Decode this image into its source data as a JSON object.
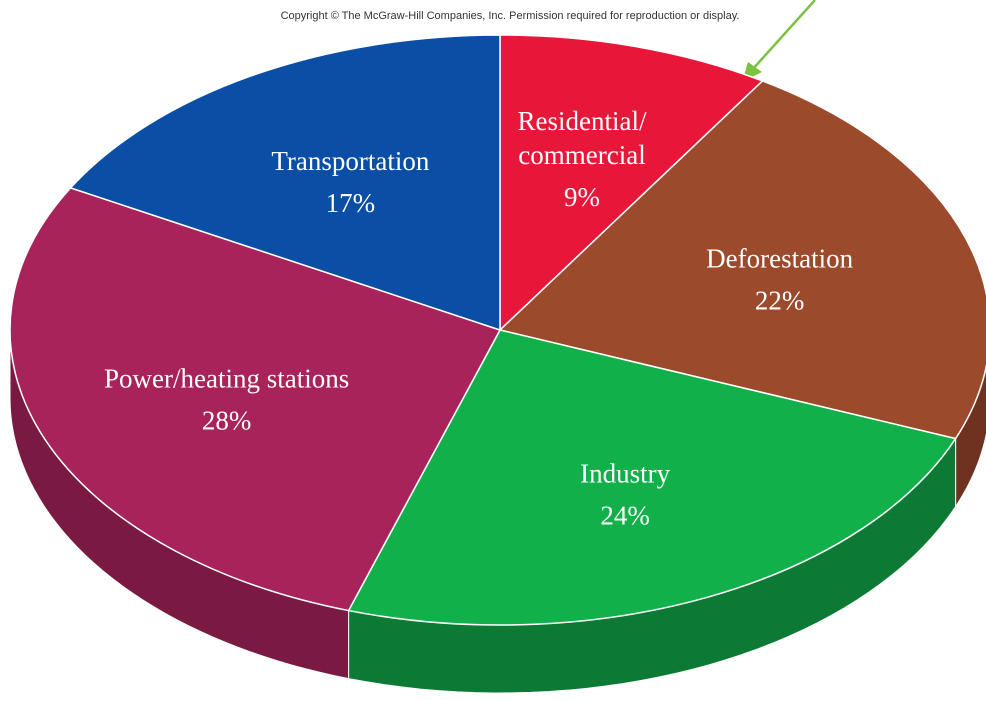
{
  "chart_data": {
    "type": "pie",
    "subtitle": "Copyright © The McGraw-Hill Companies, Inc. Permission required for reproduction or display.",
    "categories": [
      "Residential/\ncommercial",
      "Deforestation",
      "Industry",
      "Power/heating stations",
      "Transportation"
    ],
    "values": [
      9,
      22,
      24,
      28,
      17
    ],
    "value_labels": [
      "9%",
      "22%",
      "24%",
      "28%",
      "17%"
    ],
    "colors": [
      "#e8173a",
      "#9b4a2c",
      "#12b04a",
      "#a8235a",
      "#0a4ea6"
    ],
    "side_colors": [
      "#a8102a",
      "#6e3320",
      "#0c7a34",
      "#7a1a42",
      "#073a7a"
    ]
  }
}
